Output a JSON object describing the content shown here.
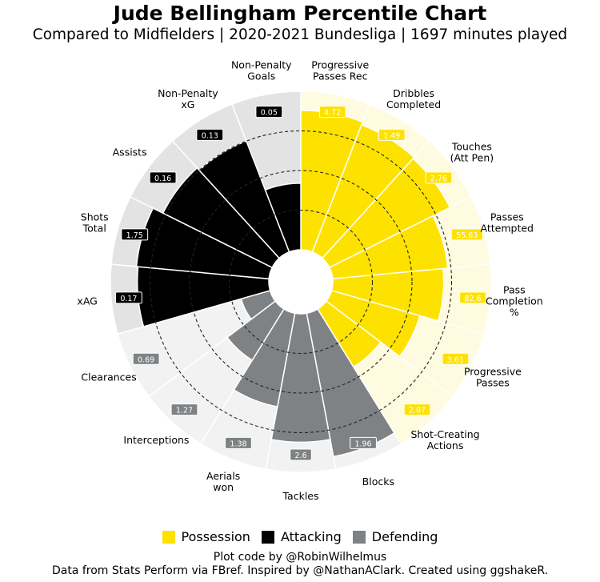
{
  "title": "Jude Bellingham Percentile Chart",
  "subtitle": "Compared to Midfielders | 2020-2021 Bundesliga | 1697 minutes played",
  "legend": [
    {
      "label": "Possession",
      "color": "#fde200"
    },
    {
      "label": "Attacking",
      "color": "#000000"
    },
    {
      "label": "Defending",
      "color": "#7f8284"
    }
  ],
  "footer": {
    "line1": "Plot code by @RobinWilhelmus",
    "line2": "Data from Stats Perform via FBref. Inspired by @NathanAClark. Created using ggshakeR."
  },
  "chart_data": {
    "type": "pie",
    "subtype": "radial-percentile (pizza)",
    "percentile_range": [
      0,
      100
    ],
    "gridlines": [
      25,
      50,
      75
    ],
    "groups": {
      "Possession": {
        "color": "#fde200",
        "background": "#fffbe0"
      },
      "Attacking": {
        "color": "#000000",
        "background": "#e3e3e3"
      },
      "Defending": {
        "color": "#7f8284",
        "background": "#f1f2f1"
      }
    },
    "stats": [
      {
        "label": "Progressive\nPasses Rec",
        "group": "Possession",
        "value": "4.72",
        "percentile": 88
      },
      {
        "label": "Dribbles\nCompleted",
        "group": "Possession",
        "value": "1.49",
        "percentile": 86
      },
      {
        "label": "Touches\n(Att Pen)",
        "group": "Possession",
        "value": "2.76",
        "percentile": 85
      },
      {
        "label": "Passes\nAttempted",
        "group": "Possession",
        "value": "55.63",
        "percentile": 73
      },
      {
        "label": "Pass\nCompletion\n%",
        "group": "Possession",
        "value": "82.6",
        "percentile": 70
      },
      {
        "label": "Progressive\nPasses",
        "group": "Possession",
        "value": "3.61",
        "percentile": 58
      },
      {
        "label": "Shot-Creating\nActions",
        "group": "Possession",
        "value": "2.07",
        "percentile": 43
      },
      {
        "label": "Blocks",
        "group": "Defending",
        "value": "1.96",
        "percentile": 92
      },
      {
        "label": "Tackles",
        "group": "Defending",
        "value": "2.6",
        "percentile": 81
      },
      {
        "label": "Aerials\nwon",
        "group": "Defending",
        "value": "1.38",
        "percentile": 60
      },
      {
        "label": "Interceptions",
        "group": "Defending",
        "value": "1.27",
        "percentile": 38
      },
      {
        "label": "Clearances",
        "group": "Defending",
        "value": "0.69",
        "percentile": 19
      },
      {
        "label": "xAG",
        "group": "Attacking",
        "value": "0.17",
        "percentile": 83
      },
      {
        "label": "Shots\nTotal",
        "group": "Attacking",
        "value": "1.75",
        "percentile": 84
      },
      {
        "label": "Assists",
        "group": "Attacking",
        "value": "0.16",
        "percentile": 77
      },
      {
        "label": "Non-Penalty\nxG",
        "group": "Attacking",
        "value": "0.13",
        "percentile": 75
      },
      {
        "label": "Non-Penalty\nGoals",
        "group": "Attacking",
        "value": "0.05",
        "percentile": 42
      }
    ]
  }
}
